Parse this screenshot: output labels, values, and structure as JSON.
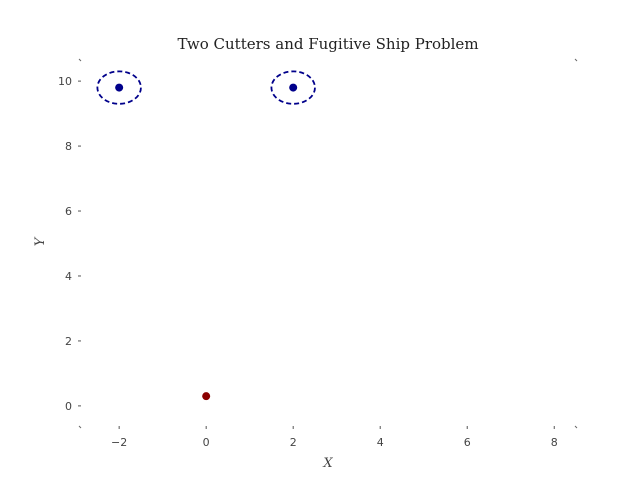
{
  "chart_data": {
    "type": "scatter",
    "title": "Two Cutters and Fugitive Ship Problem",
    "xlabel": "X",
    "ylabel": "Y",
    "xlim": [
      -2.9,
      8.5
    ],
    "ylim": [
      -0.65,
      10.65
    ],
    "x_ticks": [
      -2,
      0,
      2,
      4,
      6,
      8
    ],
    "y_ticks": [
      0,
      2,
      4,
      6,
      8,
      10
    ],
    "x_tick_labels": [
      "−2",
      "0",
      "2",
      "4",
      "6",
      "8"
    ],
    "y_tick_labels": [
      "0",
      "2",
      "4",
      "6",
      "8",
      "10"
    ],
    "grid": false,
    "series": [
      {
        "role": "cutters",
        "color": "#00008b",
        "points": [
          {
            "x": -2,
            "y": 9.8
          },
          {
            "x": 2,
            "y": 9.8
          }
        ]
      },
      {
        "role": "fugitive ship",
        "color": "#8b0000",
        "points": [
          {
            "x": 0,
            "y": 0.3
          }
        ]
      }
    ],
    "circles": [
      {
        "cx": -2,
        "cy": 9.8,
        "r": 0.5,
        "style": "dashed",
        "color": "#00008b"
      },
      {
        "cx": 2,
        "cy": 9.8,
        "r": 0.5,
        "style": "dashed",
        "color": "#00008b"
      }
    ]
  }
}
